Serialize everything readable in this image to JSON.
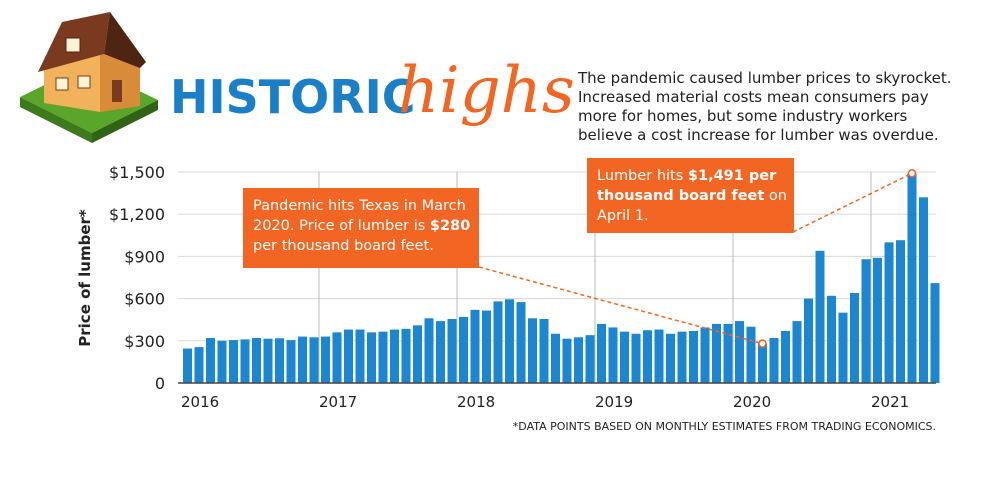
{
  "chart_data": {
    "type": "bar",
    "title": "HISTORIC",
    "title_accent": "highs",
    "description": [
      "The pandemic caused lumber prices to skyrocket.",
      "Increased material costs mean consumers pay",
      "more for homes, but some industry workers",
      "believe a cost increase for lumber was overdue."
    ],
    "y_label": "Price of lumber*",
    "footnote": "*DATA POINTS BASED ON MONTHLY ESTIMATES FROM TRADING ECONOMICS.",
    "color": "#1c86d1",
    "categories": [
      "2016",
      null,
      null,
      null,
      null,
      null,
      null,
      null,
      null,
      null,
      null,
      null,
      "2017",
      null,
      null,
      null,
      null,
      null,
      null,
      null,
      null,
      null,
      null,
      null,
      "2018",
      null,
      null,
      null,
      null,
      null,
      null,
      null,
      null,
      null,
      null,
      null,
      "2019",
      null,
      null,
      null,
      null,
      null,
      null,
      null,
      null,
      null,
      null,
      null,
      "2020",
      null,
      null,
      null,
      null,
      null,
      null,
      null,
      null,
      null,
      null,
      null,
      "2021",
      null,
      null,
      null,
      null,
      null
    ],
    "values": [
      245,
      255,
      320,
      300,
      305,
      310,
      320,
      315,
      318,
      305,
      330,
      325,
      330,
      360,
      380,
      380,
      360,
      365,
      380,
      385,
      410,
      460,
      440,
      455,
      470,
      520,
      515,
      580,
      595,
      575,
      460,
      455,
      350,
      315,
      325,
      340,
      420,
      395,
      365,
      350,
      375,
      380,
      350,
      365,
      370,
      395,
      420,
      420,
      440,
      400,
      280,
      320,
      370,
      440,
      600,
      940,
      620,
      500,
      640,
      880,
      890,
      1000,
      1015,
      1491,
      1320,
      710
    ],
    "ylim": [
      0,
      1500
    ],
    "yticks": [
      0,
      {
        "value": 300,
        "label": "$300"
      },
      {
        "value": 600,
        "label": "$600"
      },
      {
        "value": 900,
        "label": "$900"
      },
      {
        "value": 1200,
        "label": "$1,200"
      },
      {
        "value": 1500,
        "label": "$1,500"
      }
    ],
    "grid": true,
    "annotations": [
      {
        "lines": [
          [
            {
              "text": "Pandemic hits Texas in March",
              "bold": false
            }
          ],
          [
            {
              "text": "2020. Price of lumber is ",
              "bold": false
            },
            {
              "text": "$280",
              "bold": true
            }
          ],
          [
            {
              "text": "per thousand board feet.",
              "bold": false
            }
          ]
        ]
      },
      {
        "lines": [
          [
            {
              "text": "Lumber hits ",
              "bold": false
            },
            {
              "text": "$1,491 per",
              "bold": true
            }
          ],
          [
            {
              "text": "thousand board feet",
              "bold": true
            },
            {
              "text": " on",
              "bold": false
            }
          ],
          [
            {
              "text": "April 1.",
              "bold": false
            }
          ]
        ]
      }
    ]
  }
}
